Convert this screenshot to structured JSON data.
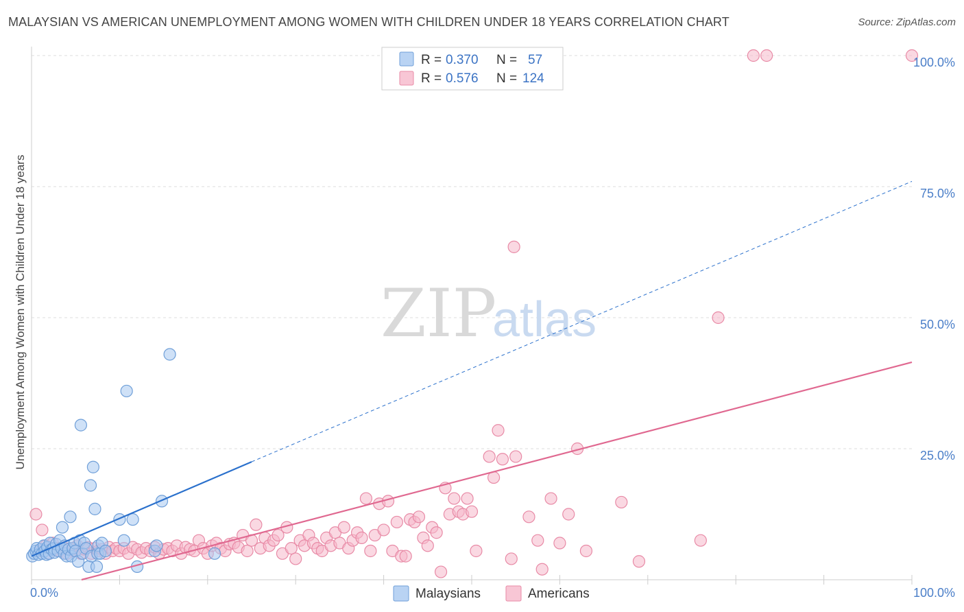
{
  "header": {
    "title": "MALAYSIAN VS AMERICAN UNEMPLOYMENT AMONG WOMEN WITH CHILDREN UNDER 18 YEARS CORRELATION CHART",
    "source": "Source: ZipAtlas.com"
  },
  "watermark": {
    "part1": "ZIP",
    "part2": "atlas"
  },
  "colors": {
    "malaysians_fill": "#a8c8f0",
    "malaysians_stroke": "#6f9fd8",
    "malaysians_line": "#2a70cc",
    "americans_fill": "#f6b8cb",
    "americans_stroke": "#e88aa6",
    "americans_line": "#e06890",
    "grid": "#dddddd",
    "tick_label": "#4a7ec8"
  },
  "legend": {
    "rows": [
      {
        "r_label": "R =",
        "r_value": "0.370",
        "n_label": "N =",
        "n_value": "57"
      },
      {
        "r_label": "R =",
        "r_value": "0.576",
        "n_label": "N =",
        "n_value": "124"
      }
    ]
  },
  "bottom_legend": {
    "malaysians": "Malaysians",
    "americans": "Americans"
  },
  "chart_data": {
    "type": "scatter",
    "xlabel": "",
    "ylabel": "Unemployment Among Women with Children Under 18 years",
    "xlim": [
      0,
      100
    ],
    "ylim": [
      0,
      100
    ],
    "x_ticks": [
      "0.0%",
      "100.0%"
    ],
    "y_ticks": [
      "25.0%",
      "50.0%",
      "75.0%",
      "100.0%"
    ],
    "grid": true,
    "series": [
      {
        "name": "Malaysians",
        "trend": {
          "x0": 0,
          "y0": 4.5,
          "x_solid_end": 25,
          "y_solid_end": 22.5,
          "x1": 100,
          "y1": 76
        },
        "points": [
          [
            0.1,
            4.5
          ],
          [
            0.3,
            5.0
          ],
          [
            0.5,
            5.5
          ],
          [
            0.6,
            6.0
          ],
          [
            0.8,
            4.8
          ],
          [
            1.0,
            5.8
          ],
          [
            1.2,
            5.0
          ],
          [
            1.4,
            6.5
          ],
          [
            1.5,
            5.5
          ],
          [
            1.7,
            4.8
          ],
          [
            1.8,
            6.2
          ],
          [
            2.0,
            5.0
          ],
          [
            2.1,
            7.0
          ],
          [
            2.3,
            5.8
          ],
          [
            2.5,
            6.0
          ],
          [
            2.6,
            5.2
          ],
          [
            2.8,
            6.8
          ],
          [
            3.0,
            5.5
          ],
          [
            3.2,
            7.5
          ],
          [
            3.4,
            6.0
          ],
          [
            3.5,
            10.0
          ],
          [
            3.7,
            5.0
          ],
          [
            3.8,
            6.5
          ],
          [
            4.0,
            4.5
          ],
          [
            4.2,
            5.8
          ],
          [
            4.4,
            12.0
          ],
          [
            4.5,
            4.5
          ],
          [
            4.7,
            6.0
          ],
          [
            4.9,
            7.0
          ],
          [
            5.0,
            5.5
          ],
          [
            5.3,
            3.5
          ],
          [
            5.5,
            7.5
          ],
          [
            5.6,
            29.5
          ],
          [
            5.8,
            5.0
          ],
          [
            6.0,
            7.0
          ],
          [
            6.2,
            6.0
          ],
          [
            6.5,
            2.5
          ],
          [
            6.7,
            18.0
          ],
          [
            6.8,
            4.5
          ],
          [
            7.0,
            21.5
          ],
          [
            7.2,
            13.5
          ],
          [
            7.4,
            2.5
          ],
          [
            7.5,
            5.0
          ],
          [
            7.6,
            6.5
          ],
          [
            7.8,
            5.0
          ],
          [
            8.0,
            7.0
          ],
          [
            8.4,
            5.5
          ],
          [
            10.0,
            11.5
          ],
          [
            10.5,
            7.5
          ],
          [
            10.8,
            36.0
          ],
          [
            11.5,
            11.5
          ],
          [
            12.0,
            2.5
          ],
          [
            14.0,
            5.5
          ],
          [
            14.2,
            6.5
          ],
          [
            14.8,
            15.0
          ],
          [
            15.7,
            43.0
          ],
          [
            20.8,
            5.0
          ]
        ]
      },
      {
        "name": "Americans",
        "trend": {
          "x0": 0,
          "y0": -2.5,
          "x1": 100,
          "y1": 41.5
        },
        "points": [
          [
            0.5,
            12.5
          ],
          [
            1.0,
            5.5
          ],
          [
            1.2,
            9.5
          ],
          [
            1.6,
            6.5
          ],
          [
            2.0,
            5.0
          ],
          [
            2.4,
            7.0
          ],
          [
            2.8,
            6.0
          ],
          [
            3.2,
            5.5
          ],
          [
            3.6,
            6.2
          ],
          [
            4.0,
            5.0
          ],
          [
            4.4,
            6.0
          ],
          [
            4.8,
            5.5
          ],
          [
            5.2,
            6.5
          ],
          [
            5.6,
            5.0
          ],
          [
            6.0,
            5.8
          ],
          [
            6.4,
            6.2
          ],
          [
            6.8,
            5.0
          ],
          [
            7.2,
            6.0
          ],
          [
            7.6,
            5.5
          ],
          [
            8.0,
            5.8
          ],
          [
            8.4,
            5.0
          ],
          [
            8.8,
            6.2
          ],
          [
            9.2,
            5.5
          ],
          [
            9.6,
            6.0
          ],
          [
            10.0,
            5.5
          ],
          [
            10.5,
            6.0
          ],
          [
            11.0,
            5.0
          ],
          [
            11.5,
            6.2
          ],
          [
            12.0,
            5.8
          ],
          [
            12.5,
            5.2
          ],
          [
            13.0,
            6.0
          ],
          [
            13.5,
            5.5
          ],
          [
            14.0,
            6.2
          ],
          [
            14.5,
            5.0
          ],
          [
            15.0,
            5.8
          ],
          [
            15.5,
            6.0
          ],
          [
            16.0,
            5.5
          ],
          [
            16.5,
            6.5
          ],
          [
            17.0,
            5.0
          ],
          [
            17.5,
            6.2
          ],
          [
            18.0,
            5.8
          ],
          [
            18.5,
            5.5
          ],
          [
            19.0,
            7.5
          ],
          [
            19.5,
            6.0
          ],
          [
            20.0,
            5.0
          ],
          [
            20.5,
            6.5
          ],
          [
            21.0,
            7.0
          ],
          [
            21.5,
            6.0
          ],
          [
            22.0,
            5.5
          ],
          [
            22.5,
            6.8
          ],
          [
            23.0,
            7.0
          ],
          [
            23.5,
            6.2
          ],
          [
            24.0,
            8.5
          ],
          [
            24.5,
            5.5
          ],
          [
            25.0,
            7.5
          ],
          [
            25.5,
            10.5
          ],
          [
            26.0,
            6.0
          ],
          [
            26.5,
            8.0
          ],
          [
            27.0,
            6.5
          ],
          [
            27.5,
            7.5
          ],
          [
            28.0,
            8.5
          ],
          [
            28.5,
            5.0
          ],
          [
            29.0,
            10.0
          ],
          [
            29.5,
            6.0
          ],
          [
            30.0,
            4.0
          ],
          [
            30.5,
            7.5
          ],
          [
            31.0,
            6.5
          ],
          [
            31.5,
            8.5
          ],
          [
            32.0,
            7.0
          ],
          [
            32.5,
            6.0
          ],
          [
            33.0,
            5.5
          ],
          [
            33.5,
            8.0
          ],
          [
            34.0,
            6.5
          ],
          [
            34.5,
            9.0
          ],
          [
            35.0,
            7.0
          ],
          [
            35.5,
            10.0
          ],
          [
            36.0,
            6.0
          ],
          [
            36.5,
            7.5
          ],
          [
            37.0,
            9.0
          ],
          [
            37.5,
            8.0
          ],
          [
            38.0,
            15.5
          ],
          [
            38.5,
            5.5
          ],
          [
            39.0,
            8.5
          ],
          [
            39.5,
            14.5
          ],
          [
            40.0,
            9.5
          ],
          [
            40.5,
            15.0
          ],
          [
            41.0,
            5.5
          ],
          [
            41.5,
            11.0
          ],
          [
            42.0,
            4.5
          ],
          [
            42.5,
            4.5
          ],
          [
            43.0,
            11.5
          ],
          [
            43.5,
            11.0
          ],
          [
            44.0,
            12.0
          ],
          [
            44.5,
            8.0
          ],
          [
            45.0,
            6.5
          ],
          [
            45.5,
            10.0
          ],
          [
            46.0,
            9.0
          ],
          [
            46.5,
            1.5
          ],
          [
            47.0,
            17.5
          ],
          [
            47.5,
            12.5
          ],
          [
            48.0,
            15.5
          ],
          [
            48.5,
            13.0
          ],
          [
            49.0,
            12.5
          ],
          [
            49.5,
            15.5
          ],
          [
            50.0,
            13.0
          ],
          [
            50.5,
            5.5
          ],
          [
            52.0,
            23.5
          ],
          [
            52.5,
            19.5
          ],
          [
            53.0,
            28.5
          ],
          [
            53.5,
            23.0
          ],
          [
            54.5,
            4.0
          ],
          [
            54.8,
            63.5
          ],
          [
            55.0,
            23.5
          ],
          [
            56.5,
            12.0
          ],
          [
            57.5,
            7.5
          ],
          [
            58.0,
            2.0
          ],
          [
            59.0,
            15.5
          ],
          [
            60.0,
            7.0
          ],
          [
            61.0,
            12.5
          ],
          [
            62.0,
            25.0
          ],
          [
            63.0,
            5.5
          ],
          [
            67.0,
            14.8
          ],
          [
            69.0,
            3.5
          ],
          [
            76.0,
            7.5
          ],
          [
            78.0,
            50.0
          ],
          [
            82.0,
            100.0
          ],
          [
            83.5,
            100.0
          ],
          [
            100.0,
            100.0
          ]
        ]
      }
    ]
  }
}
